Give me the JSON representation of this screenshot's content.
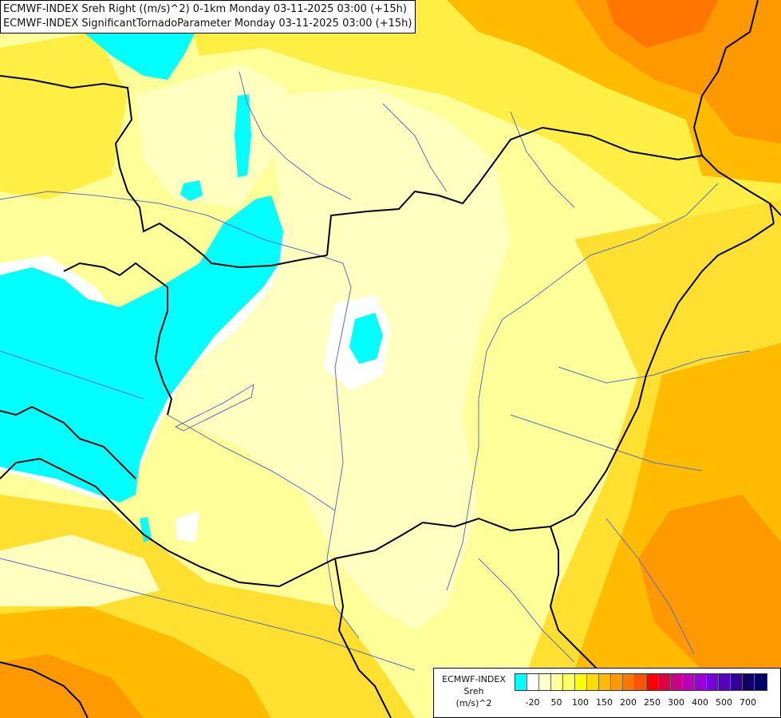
{
  "header": {
    "line1": "ECMWF-INDEX Sreh Right ((m/s)^2) 0-1km Monday 03-11-2025 03:00 (+15h)",
    "line2": "ECMWF-INDEX SignificantTornadoParameter Monday 03-11-2025 03:00 (+15h)"
  },
  "legend": {
    "model": "ECMWF-INDEX",
    "field": "Sreh",
    "unit": "(m/s)^2",
    "ticks": [
      "-20",
      "50",
      "100",
      "150",
      "200",
      "250",
      "300",
      "400",
      "500",
      "700"
    ],
    "colors": [
      "#00ffff",
      "#ffffff",
      "#ffffcc",
      "#ffff99",
      "#ffff66",
      "#ffff00",
      "#ffdd00",
      "#ffbb00",
      "#ff9900",
      "#ff7700",
      "#ff5500",
      "#ff0000",
      "#dd0044",
      "#cc0088",
      "#bb00bb",
      "#9900dd",
      "#7700dd",
      "#5500bb",
      "#330099",
      "#110066",
      "#000066"
    ]
  },
  "map_colors": {
    "cyan": "#00ffff",
    "white": "#ffffff",
    "pale_yellow": "#ffffc0",
    "light_yellow": "#ffff99",
    "yellow": "#ffee44",
    "deep_yellow": "#ffdd00",
    "orange": "#ffbb00",
    "dark_orange": "#ff9900",
    "red_orange": "#ff7700"
  }
}
